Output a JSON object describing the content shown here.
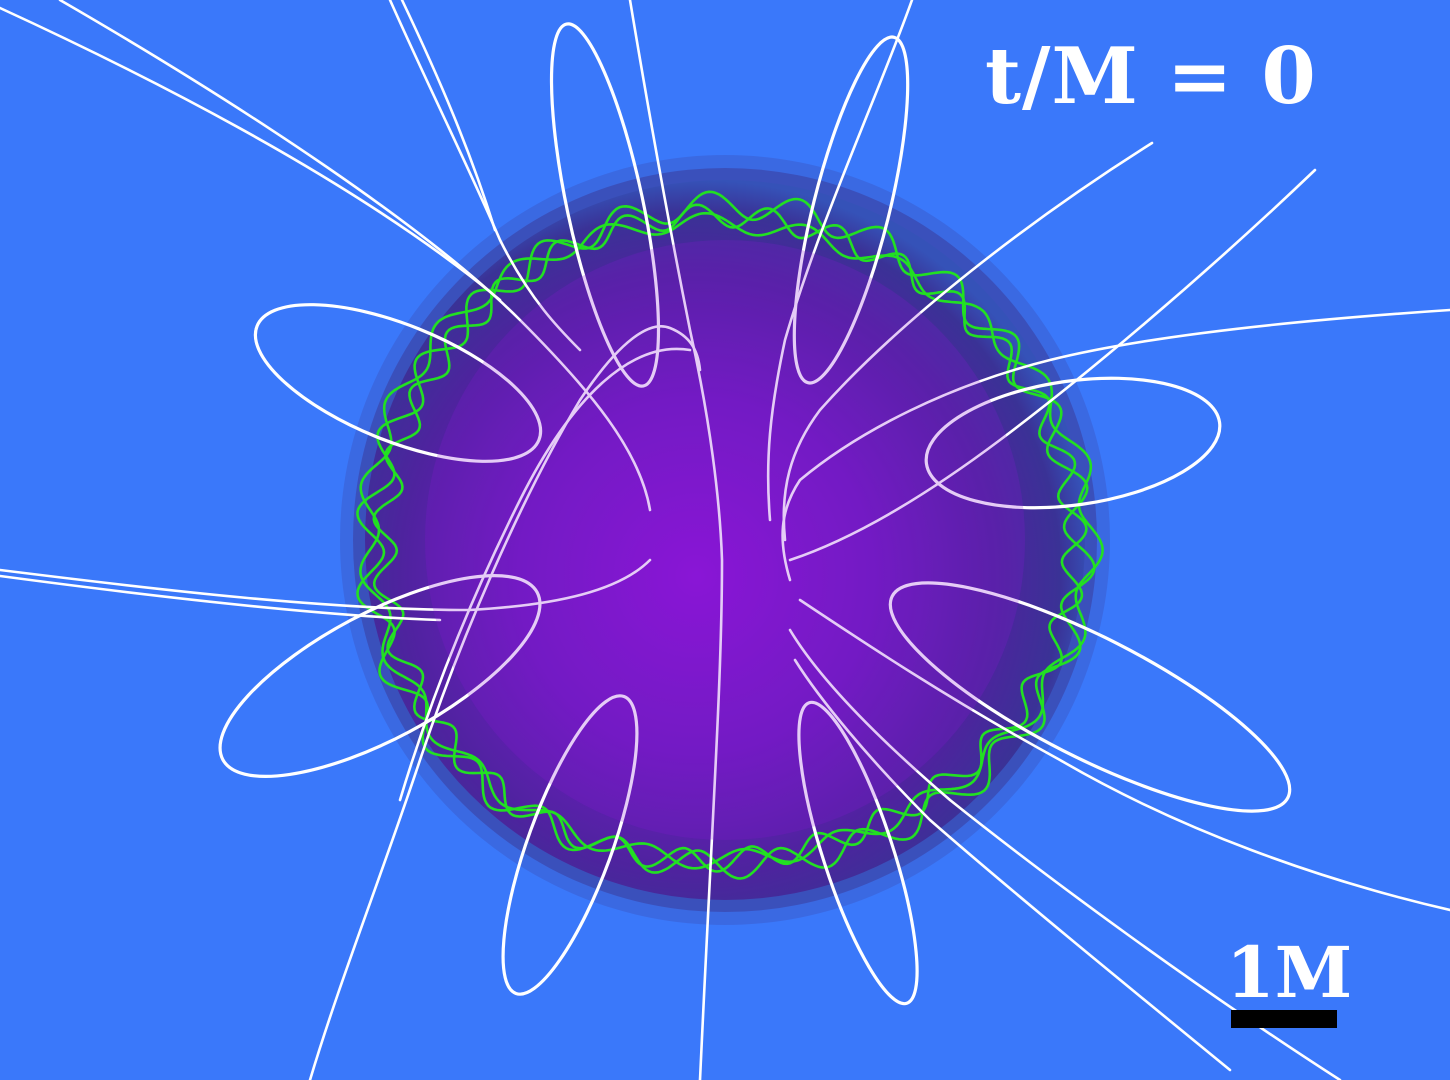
{
  "time_label": "t/M = 0",
  "scale_label": "1M",
  "colors": {
    "background": "#3a78fa",
    "star_core": "#8a16d6",
    "star_edge": "#4a2d9c",
    "field_lines": "#ffffff",
    "orbits": "#22e022"
  }
}
